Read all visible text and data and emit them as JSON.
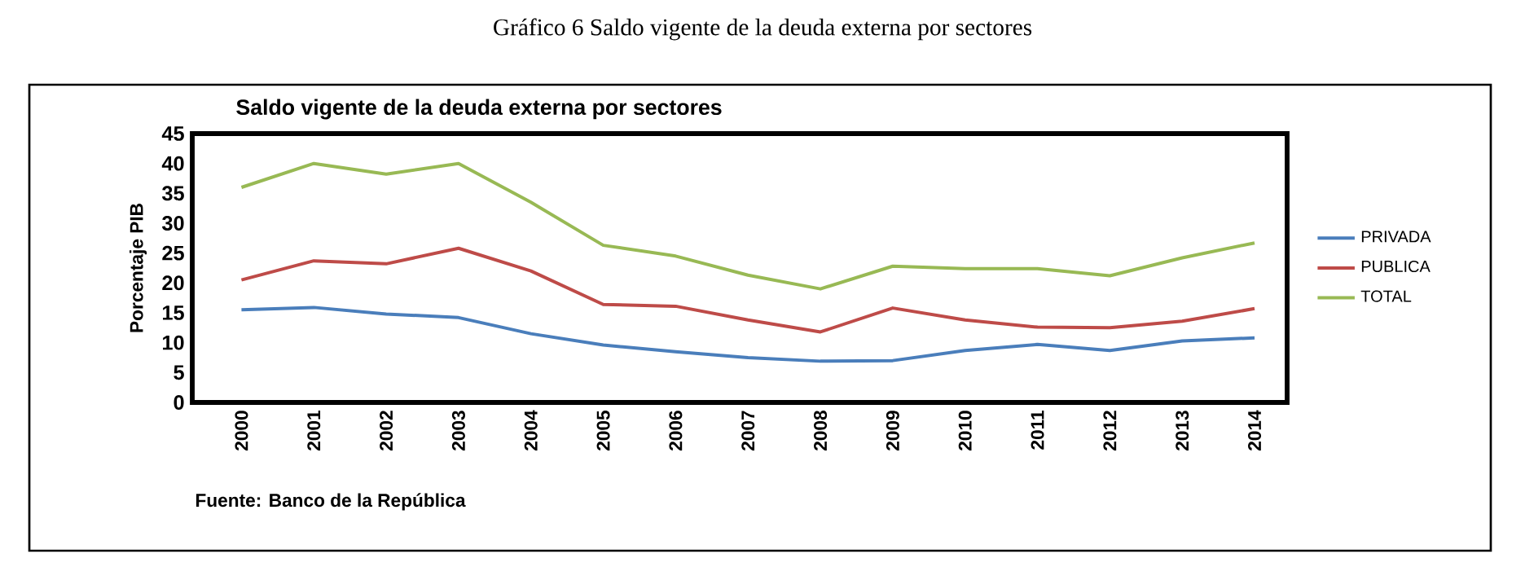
{
  "chart_data": {
    "type": "line",
    "title": "Gráfico 6 Saldo vigente de la deuda externa por sectores",
    "subtitle": "Saldo vigente de la deuda externa por sectores",
    "ylabel": "Porcentaje PIB",
    "annotations": [
      "Fuente: Banco de la República"
    ],
    "categories": [
      "2000",
      "2001",
      "2002",
      "2003",
      "2004",
      "2005",
      "2006",
      "2007",
      "2008",
      "2009",
      "2010",
      "2011",
      "2012",
      "2013",
      "2014"
    ],
    "series": [
      {
        "name": "PRIVADA",
        "color": "#4a7ebb",
        "values": [
          15.5,
          15.9,
          14.8,
          14.2,
          11.5,
          9.6,
          8.5,
          7.5,
          6.9,
          7.0,
          8.7,
          9.7,
          8.7,
          10.3,
          10.8
        ]
      },
      {
        "name": "PUBLICA",
        "color": "#be4b48",
        "values": [
          20.5,
          23.7,
          23.2,
          25.8,
          22.0,
          16.4,
          16.1,
          13.8,
          11.8,
          15.8,
          13.8,
          12.6,
          12.5,
          13.6,
          15.7
        ]
      },
      {
        "name": "TOTAL",
        "color": "#98b954",
        "values": [
          36.0,
          40.0,
          38.2,
          40.0,
          33.5,
          26.3,
          24.5,
          21.3,
          19.0,
          22.8,
          22.4,
          22.4,
          21.2,
          24.2,
          26.7
        ]
      }
    ],
    "ylim": [
      0,
      45
    ],
    "yticks": [
      0,
      5,
      10,
      15,
      20,
      25,
      30,
      35,
      40,
      45
    ],
    "grid": false,
    "legend": "right"
  }
}
